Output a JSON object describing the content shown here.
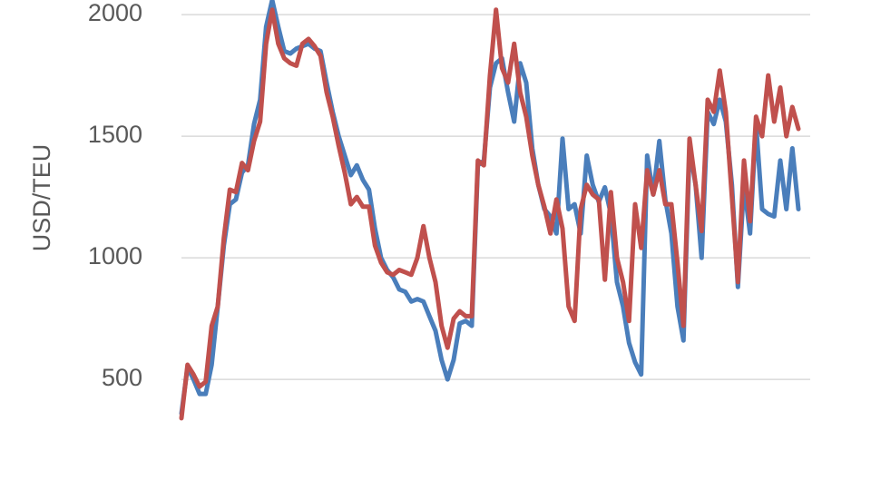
{
  "chart_data": {
    "type": "line",
    "y_label": "USD/TEU",
    "categories": [
      null,
      null,
      null,
      null,
      null,
      null,
      null,
      null,
      null,
      null,
      null,
      null,
      null,
      null,
      null,
      null,
      null,
      null,
      null,
      null,
      null,
      null,
      null,
      null,
      null,
      null,
      null,
      null,
      null,
      null,
      null,
      null,
      null,
      null,
      null,
      null,
      null,
      null,
      null,
      null,
      null,
      null,
      null,
      null,
      null,
      null,
      null,
      null,
      null,
      null,
      null,
      null,
      null,
      null,
      null,
      null,
      null,
      null,
      null,
      null,
      null,
      null,
      null,
      null,
      null,
      null,
      null,
      null,
      null,
      null,
      null,
      null,
      null,
      null,
      null,
      null,
      null,
      null,
      null,
      null,
      null,
      null,
      null,
      null,
      null,
      null,
      null,
      null,
      null,
      null,
      null,
      null,
      null,
      null,
      null,
      null,
      null,
      null,
      null,
      null,
      null,
      null,
      null
    ],
    "series": [
      {
        "color": "#4a7ebb",
        "values": [
          360,
          550,
          500,
          440,
          440,
          560,
          800,
          1050,
          1220,
          1240,
          1350,
          1380,
          1550,
          1650,
          1950,
          2060,
          1950,
          1850,
          1840,
          1860,
          1870,
          1880,
          1860,
          1850,
          1720,
          1600,
          1500,
          1420,
          1340,
          1380,
          1320,
          1280,
          1120,
          1000,
          950,
          920,
          870,
          860,
          820,
          830,
          820,
          760,
          700,
          580,
          500,
          580,
          730,
          740,
          720,
          1380,
          1400,
          1700,
          1800,
          1820,
          1680,
          1560,
          1800,
          1720,
          1450,
          1300,
          1200,
          1170,
          1100,
          1490,
          1200,
          1220,
          1100,
          1420,
          1300,
          1230,
          1290,
          1180,
          900,
          800,
          650,
          570,
          520,
          1420,
          1260,
          1480,
          1240,
          1100,
          800,
          660,
          1450,
          1300,
          1000,
          1600,
          1550,
          1650,
          1560,
          1300,
          880,
          1300,
          1100,
          1550,
          1200,
          1180,
          1170,
          1400,
          1200,
          1450,
          1200
        ]
      },
      {
        "color": "#c0504d",
        "values": [
          340,
          560,
          520,
          470,
          490,
          720,
          800,
          1080,
          1280,
          1270,
          1390,
          1360,
          1480,
          1560,
          1880,
          2020,
          1880,
          1820,
          1800,
          1790,
          1880,
          1900,
          1870,
          1830,
          1680,
          1580,
          1460,
          1350,
          1220,
          1250,
          1210,
          1210,
          1050,
          980,
          940,
          930,
          950,
          940,
          930,
          1000,
          1130,
          1000,
          900,
          720,
          630,
          750,
          780,
          760,
          760,
          1400,
          1380,
          1750,
          2020,
          1780,
          1720,
          1880,
          1680,
          1580,
          1420,
          1300,
          1210,
          1100,
          1240,
          1120,
          800,
          740,
          1200,
          1300,
          1260,
          1240,
          910,
          1270,
          1000,
          900,
          740,
          1220,
          1040,
          1360,
          1260,
          1360,
          1220,
          1220,
          980,
          720,
          1490,
          1300,
          1110,
          1650,
          1600,
          1770,
          1600,
          1250,
          900,
          1400,
          1150,
          1580,
          1500,
          1750,
          1560,
          1700,
          1500,
          1620,
          1530
        ]
      }
    ],
    "ylim": [
      45,
      2060
    ],
    "yticks": [
      500,
      1000,
      1500,
      2000
    ],
    "grid": true
  }
}
